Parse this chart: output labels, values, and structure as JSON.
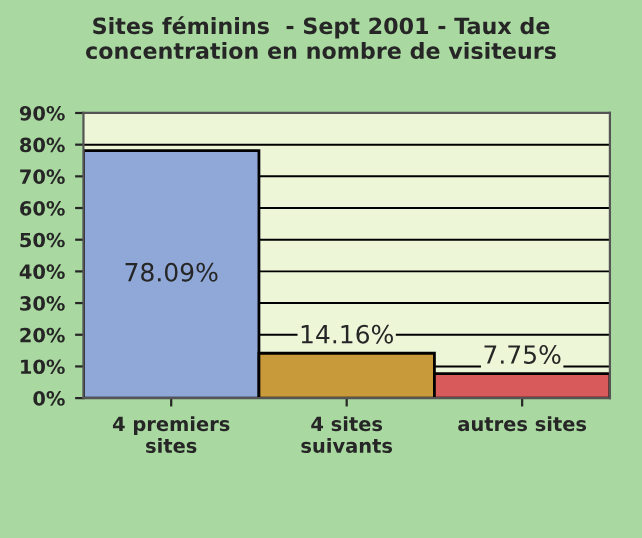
{
  "chart_data": {
    "type": "bar",
    "title": "Sites féminins  - Sept 2001 - Taux de\nconcentration en nombre de visiteurs",
    "categories": [
      "4 premiers\nsites",
      "4 sites\nsuivants",
      "autres sites"
    ],
    "values": [
      78.09,
      14.16,
      7.75
    ],
    "colors": [
      "#8fa8d8",
      "#c99a3a",
      "#d85a5a"
    ],
    "value_labels": [
      "78.09%",
      "14.16%",
      "7.75%"
    ],
    "ylim": [
      0,
      90
    ],
    "yticks": [
      {
        "value": 0,
        "label": "0%"
      },
      {
        "value": 10,
        "label": "10%"
      },
      {
        "value": 20,
        "label": "20%"
      },
      {
        "value": 30,
        "label": "30%"
      },
      {
        "value": 40,
        "label": "40%"
      },
      {
        "value": 50,
        "label": "50%"
      },
      {
        "value": 60,
        "label": "60%"
      },
      {
        "value": 70,
        "label": "70%"
      },
      {
        "value": 80,
        "label": "80%"
      },
      {
        "value": 90,
        "label": "90%"
      }
    ],
    "grid": "y"
  }
}
